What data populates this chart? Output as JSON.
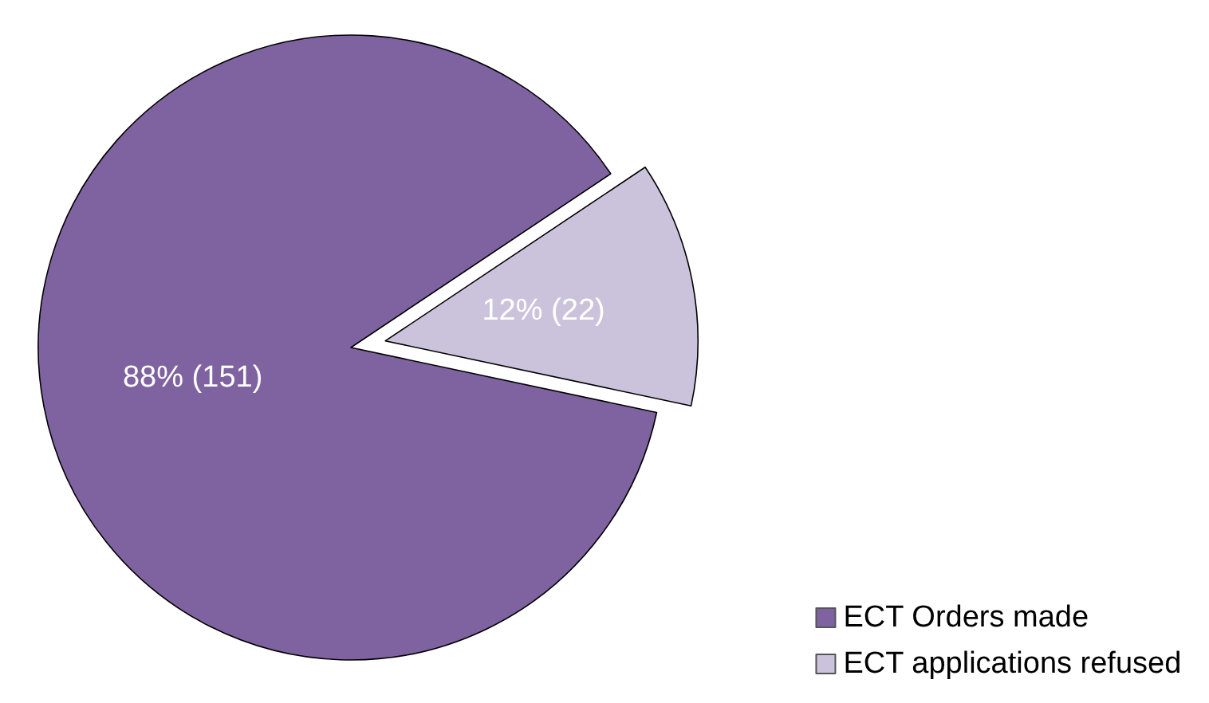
{
  "chart_data": {
    "type": "pie",
    "categories": [
      "ECT Orders made",
      "ECT applications refused"
    ],
    "values": [
      151,
      22
    ],
    "colors": [
      "#7f63a1",
      "#cbc3dc"
    ],
    "value_labels": [
      "88% (151)",
      "12% (22)"
    ],
    "legend": "bottom right"
  }
}
